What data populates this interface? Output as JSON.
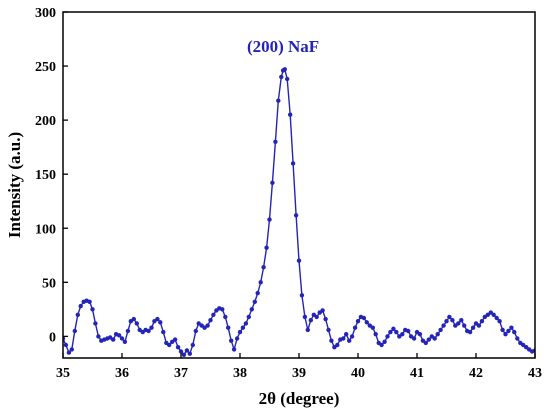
{
  "chart_data": {
    "type": "line",
    "xlabel": "2θ (degree)",
    "ylabel": "Intensity (a.u.)",
    "xlim": [
      35,
      43
    ],
    "ylim": [
      -20,
      300
    ],
    "xticks": [
      35,
      36,
      37,
      38,
      39,
      40,
      41,
      42,
      43
    ],
    "yticks": [
      0,
      50,
      100,
      150,
      200,
      250,
      300
    ],
    "grid": false,
    "colors": {
      "series": "#2424b8",
      "axis": "#000000"
    },
    "annotations": [
      {
        "text": "(200) NaF",
        "x": 38.73,
        "y": 263
      }
    ],
    "series": [
      {
        "marker": "circle",
        "points": [
          [
            35.0,
            -2
          ],
          [
            35.05,
            -8
          ],
          [
            35.1,
            -15
          ],
          [
            35.15,
            -12
          ],
          [
            35.2,
            5
          ],
          [
            35.25,
            20
          ],
          [
            35.3,
            28
          ],
          [
            35.35,
            32
          ],
          [
            35.4,
            33
          ],
          [
            35.45,
            32
          ],
          [
            35.5,
            25
          ],
          [
            35.55,
            12
          ],
          [
            35.6,
            0
          ],
          [
            35.65,
            -4
          ],
          [
            35.7,
            -3
          ],
          [
            35.75,
            -2
          ],
          [
            35.8,
            -1
          ],
          [
            35.85,
            -3
          ],
          [
            35.9,
            2
          ],
          [
            35.95,
            1
          ],
          [
            36.0,
            -2
          ],
          [
            36.05,
            -5
          ],
          [
            36.1,
            5
          ],
          [
            36.15,
            14
          ],
          [
            36.2,
            16
          ],
          [
            36.25,
            12
          ],
          [
            36.3,
            6
          ],
          [
            36.35,
            4
          ],
          [
            36.4,
            6
          ],
          [
            36.45,
            5
          ],
          [
            36.5,
            8
          ],
          [
            36.55,
            14
          ],
          [
            36.6,
            16
          ],
          [
            36.65,
            13
          ],
          [
            36.7,
            4
          ],
          [
            36.75,
            -6
          ],
          [
            36.8,
            -8
          ],
          [
            36.85,
            -5
          ],
          [
            36.9,
            -3
          ],
          [
            36.95,
            -10
          ],
          [
            37.0,
            -14
          ],
          [
            37.05,
            -17
          ],
          [
            37.1,
            -13
          ],
          [
            37.15,
            -16
          ],
          [
            37.2,
            -8
          ],
          [
            37.25,
            5
          ],
          [
            37.3,
            12
          ],
          [
            37.35,
            10
          ],
          [
            37.4,
            8
          ],
          [
            37.45,
            10
          ],
          [
            37.5,
            15
          ],
          [
            37.55,
            20
          ],
          [
            37.6,
            24
          ],
          [
            37.65,
            26
          ],
          [
            37.7,
            25
          ],
          [
            37.75,
            18
          ],
          [
            37.8,
            8
          ],
          [
            37.85,
            -4
          ],
          [
            37.9,
            -12
          ],
          [
            37.95,
            -2
          ],
          [
            38.0,
            4
          ],
          [
            38.05,
            8
          ],
          [
            38.1,
            12
          ],
          [
            38.15,
            18
          ],
          [
            38.2,
            25
          ],
          [
            38.25,
            32
          ],
          [
            38.3,
            40
          ],
          [
            38.35,
            50
          ],
          [
            38.4,
            64
          ],
          [
            38.45,
            82
          ],
          [
            38.5,
            108
          ],
          [
            38.55,
            142
          ],
          [
            38.6,
            180
          ],
          [
            38.65,
            218
          ],
          [
            38.7,
            240
          ],
          [
            38.73,
            246
          ],
          [
            38.76,
            247
          ],
          [
            38.8,
            238
          ],
          [
            38.85,
            205
          ],
          [
            38.9,
            160
          ],
          [
            38.95,
            112
          ],
          [
            39.0,
            70
          ],
          [
            39.05,
            38
          ],
          [
            39.1,
            18
          ],
          [
            39.15,
            6
          ],
          [
            39.2,
            15
          ],
          [
            39.25,
            20
          ],
          [
            39.3,
            18
          ],
          [
            39.35,
            22
          ],
          [
            39.4,
            24
          ],
          [
            39.45,
            16
          ],
          [
            39.5,
            6
          ],
          [
            39.55,
            -4
          ],
          [
            39.6,
            -10
          ],
          [
            39.65,
            -8
          ],
          [
            39.7,
            -3
          ],
          [
            39.75,
            -2
          ],
          [
            39.8,
            2
          ],
          [
            39.85,
            -4
          ],
          [
            39.9,
            0
          ],
          [
            39.95,
            8
          ],
          [
            40.0,
            14
          ],
          [
            40.05,
            18
          ],
          [
            40.1,
            17
          ],
          [
            40.15,
            13
          ],
          [
            40.2,
            10
          ],
          [
            40.25,
            8
          ],
          [
            40.3,
            2
          ],
          [
            40.35,
            -6
          ],
          [
            40.4,
            -8
          ],
          [
            40.45,
            -5
          ],
          [
            40.5,
            0
          ],
          [
            40.55,
            4
          ],
          [
            40.6,
            7
          ],
          [
            40.65,
            4
          ],
          [
            40.7,
            0
          ],
          [
            40.75,
            2
          ],
          [
            40.8,
            6
          ],
          [
            40.85,
            5
          ],
          [
            40.9,
            0
          ],
          [
            40.95,
            -2
          ],
          [
            41.0,
            4
          ],
          [
            41.05,
            2
          ],
          [
            41.1,
            -4
          ],
          [
            41.15,
            -6
          ],
          [
            41.2,
            -3
          ],
          [
            41.25,
            0
          ],
          [
            41.3,
            -2
          ],
          [
            41.35,
            2
          ],
          [
            41.4,
            6
          ],
          [
            41.45,
            10
          ],
          [
            41.5,
            14
          ],
          [
            41.55,
            18
          ],
          [
            41.6,
            15
          ],
          [
            41.65,
            10
          ],
          [
            41.7,
            12
          ],
          [
            41.75,
            15
          ],
          [
            41.8,
            10
          ],
          [
            41.85,
            5
          ],
          [
            41.9,
            4
          ],
          [
            41.95,
            8
          ],
          [
            42.0,
            12
          ],
          [
            42.05,
            10
          ],
          [
            42.1,
            14
          ],
          [
            42.15,
            18
          ],
          [
            42.2,
            20
          ],
          [
            42.25,
            22
          ],
          [
            42.3,
            20
          ],
          [
            42.35,
            17
          ],
          [
            42.4,
            14
          ],
          [
            42.45,
            6
          ],
          [
            42.5,
            2
          ],
          [
            42.55,
            5
          ],
          [
            42.6,
            8
          ],
          [
            42.65,
            4
          ],
          [
            42.7,
            -2
          ],
          [
            42.75,
            -6
          ],
          [
            42.8,
            -8
          ],
          [
            42.85,
            -10
          ],
          [
            42.9,
            -12
          ],
          [
            42.95,
            -14
          ],
          [
            43.0,
            -13
          ]
        ]
      }
    ]
  }
}
